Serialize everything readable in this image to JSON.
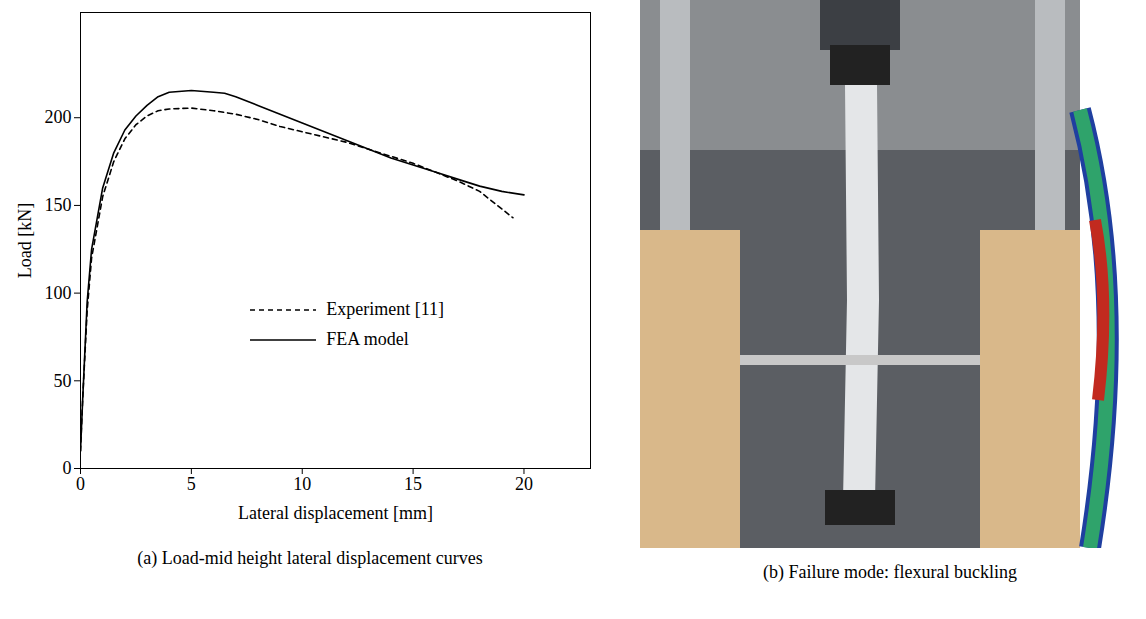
{
  "chart_data": {
    "type": "line",
    "title": "(a) Load-mid height lateral displacement curves",
    "x_label": "Lateral displacement [mm]",
    "y_label": "Load [kN]",
    "xlim": [
      0,
      23
    ],
    "xticks": [
      0,
      5,
      10,
      15,
      20
    ],
    "ylim": [
      0,
      260
    ],
    "yticks": [
      0,
      50,
      100,
      150,
      200
    ],
    "grid": false,
    "legend": "center",
    "series": [
      {
        "name": "Experiment [11]",
        "color": "#000000",
        "line_style": "dashed",
        "x": [
          0,
          0.1,
          0.3,
          0.5,
          1,
          1.5,
          2,
          2.5,
          3,
          3.5,
          4,
          5,
          6,
          7,
          8,
          9,
          10,
          11,
          12,
          13,
          14,
          15,
          16,
          17,
          18,
          18.5,
          19,
          19.5
        ],
        "values": [
          10,
          40,
          90,
          120,
          155,
          175,
          188,
          196,
          201,
          204,
          205,
          205.5,
          204,
          202,
          199,
          195,
          192,
          189,
          186,
          182,
          178,
          174,
          169,
          164,
          158,
          153,
          148,
          143
        ]
      },
      {
        "name": "FEA model",
        "color": "#000000",
        "line_style": "solid",
        "x": [
          0,
          0.1,
          0.3,
          0.5,
          1,
          1.5,
          2,
          2.5,
          3,
          3.5,
          4,
          5,
          6,
          6.5,
          7,
          8,
          9,
          10,
          11,
          12,
          13,
          14,
          15,
          16,
          17,
          18,
          19,
          20
        ],
        "values": [
          10,
          40,
          95,
          125,
          160,
          180,
          193,
          201,
          207,
          212,
          214.5,
          215.5,
          214.5,
          214,
          212,
          207,
          202,
          197,
          192,
          187,
          182,
          177,
          173,
          169,
          165,
          161,
          158,
          156
        ]
      }
    ]
  },
  "photo": {
    "caption": "(b) Failure mode: flexural buckling"
  }
}
